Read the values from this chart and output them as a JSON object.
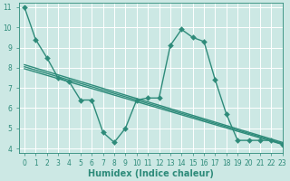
{
  "xlabel": "Humidex (Indice chaleur)",
  "xlim": [
    -0.5,
    23
  ],
  "ylim": [
    3.8,
    11.2
  ],
  "yticks": [
    4,
    5,
    6,
    7,
    8,
    9,
    10,
    11
  ],
  "xticks": [
    0,
    1,
    2,
    3,
    4,
    5,
    6,
    7,
    8,
    9,
    10,
    11,
    12,
    13,
    14,
    15,
    16,
    17,
    18,
    19,
    20,
    21,
    22,
    23
  ],
  "background_color": "#cce8e4",
  "grid_color": "#ffffff",
  "line_color": "#2e8b7a",
  "main_line": {
    "x": [
      0,
      1,
      2,
      3,
      4,
      5,
      6,
      7,
      8,
      9,
      10,
      11,
      12,
      13,
      14,
      15,
      16,
      17,
      18,
      19,
      20,
      21,
      22,
      23
    ],
    "y": [
      11.0,
      9.4,
      8.5,
      7.5,
      7.3,
      6.4,
      6.4,
      4.8,
      4.3,
      5.0,
      6.4,
      6.5,
      6.5,
      9.1,
      9.9,
      9.5,
      9.3,
      7.4,
      5.7,
      4.4,
      4.4,
      4.4,
      4.4,
      4.2
    ]
  },
  "straight_lines": [
    {
      "x": [
        0,
        23
      ],
      "y": [
        7.95,
        4.2
      ]
    },
    {
      "x": [
        0,
        23
      ],
      "y": [
        8.05,
        4.25
      ]
    },
    {
      "x": [
        0,
        23
      ],
      "y": [
        8.15,
        4.3
      ]
    }
  ],
  "markersize": 3,
  "linewidth": 1.0,
  "tick_fontsize": 5.5,
  "label_fontsize": 7
}
